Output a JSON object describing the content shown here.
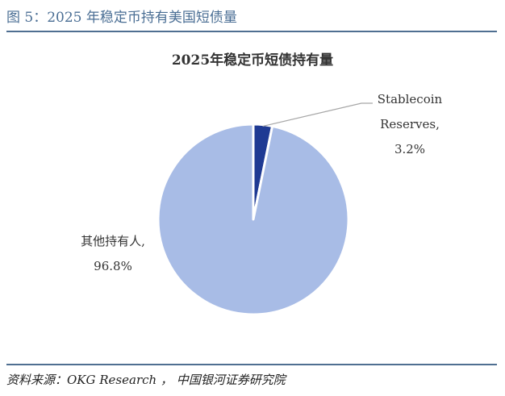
{
  "figure": {
    "caption": "图 5：2025 年稳定币持有美国短债量",
    "source": "资料来源：OKG Research ， 中国银河证券研究院"
  },
  "chart_data": {
    "type": "pie",
    "title": "2025年稳定币短债持有量",
    "slices": [
      {
        "name": "Stablecoin Reserves",
        "label_lines": [
          "Stablecoin",
          "Reserves,",
          "3.2%"
        ],
        "value": 3.2,
        "color": "#1f3a93"
      },
      {
        "name": "其他持有人",
        "label_lines": [
          "其他持有人,",
          "96.8%"
        ],
        "value": 96.8,
        "color": "#a8bce6"
      }
    ],
    "legend": "none"
  }
}
